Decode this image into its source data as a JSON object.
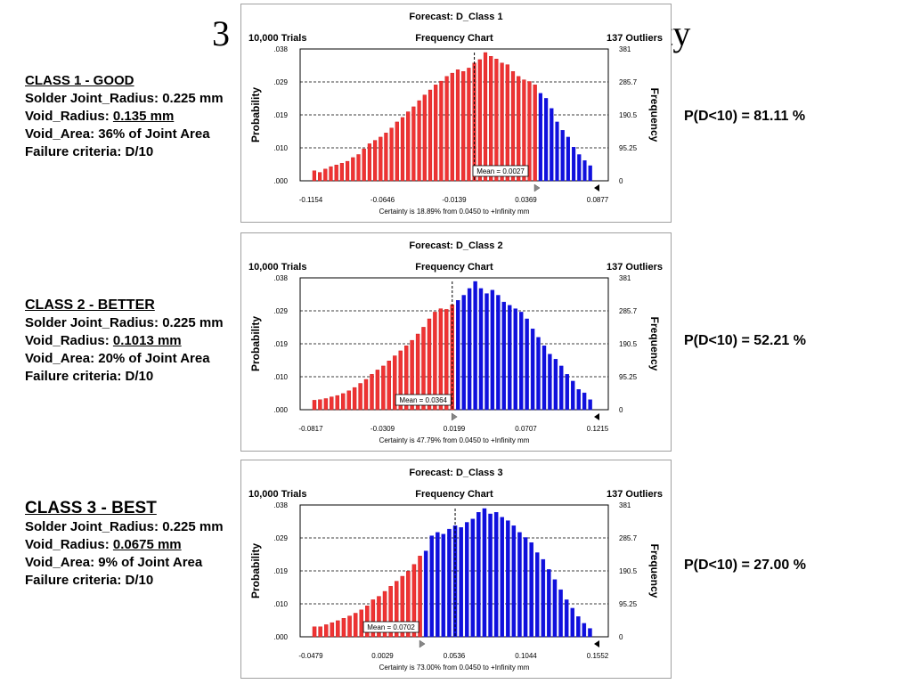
{
  "slide": {
    "title_visible": "3",
    "title_visible_end": "lity"
  },
  "classes": [
    {
      "heading": "CLASS 1 - GOOD",
      "radius_label": "Solder Joint_Radius: 0.225 mm",
      "void_radius_label": "Void_Radius: ",
      "void_radius_value": "0.135 mm",
      "void_area": "Void_Area: 36% of Joint Area",
      "failure": "Failure criteria: D/10",
      "probability": "P(D<10) = 81.11 %"
    },
    {
      "heading": "CLASS 2 - BETTER",
      "radius_label": "Solder Joint_Radius: 0.225 mm",
      "void_radius_label": "Void_Radius: ",
      "void_radius_value": "0.1013 mm",
      "void_area": "Void_Area: 20% of Joint Area",
      "failure": "Failure criteria: D/10",
      "probability": "P(D<10) = 52.21 %"
    },
    {
      "heading": "CLASS 3 - BEST",
      "radius_label": "Solder Joint_Radius:  0.225 mm",
      "void_radius_label": "Void_Radius: ",
      "void_radius_value": "0.0675 mm",
      "void_area": "Void_Area: 9% of Joint Area",
      "failure": "Failure criteria: D/10",
      "probability": "P(D<10) = 27.00 %"
    }
  ],
  "charts": [
    {
      "title": "Forecast: D_Class 1",
      "trials": "10,000 Trials",
      "subtitle": "Frequency Chart",
      "outliers": "137 Outliers",
      "ylabel": "Probability",
      "y2label": "Frequency",
      "left_ticks": [
        ".038",
        ".029",
        ".019",
        ".010",
        ".000"
      ],
      "right_ticks": [
        "381",
        "285.7",
        "190.5",
        "95.25",
        "0"
      ],
      "x_ticks": [
        "-0.1154",
        "-0.0646",
        "-0.0139",
        "0.0369",
        "0.0877"
      ],
      "mean_label": "Mean = 0.0027",
      "certainty": "Certainty is 18.89% from 0.0450 to +Infinity mm"
    },
    {
      "title": "Forecast: D_Class 2",
      "trials": "10,000 Trials",
      "subtitle": "Frequency Chart",
      "outliers": "137 Outliers",
      "ylabel": "Probability",
      "y2label": "Frequency",
      "left_ticks": [
        ".038",
        ".029",
        ".019",
        ".010",
        ".000"
      ],
      "right_ticks": [
        "381",
        "285.7",
        "190.5",
        "95.25",
        "0"
      ],
      "x_ticks": [
        "-0.0817",
        "-0.0309",
        "0.0199",
        "0.0707",
        "0.1215"
      ],
      "mean_label": "Mean = 0.0364",
      "certainty": "Certainty is 47.79% from 0.0450 to +Infinity mm"
    },
    {
      "title": "Forecast: D_Class 3",
      "trials": "10,000 Trials",
      "subtitle": "Frequency Chart",
      "outliers": "137 Outliers",
      "ylabel": "Probability",
      "y2label": "Frequency",
      "left_ticks": [
        ".038",
        ".029",
        ".019",
        ".010",
        ".000"
      ],
      "right_ticks": [
        "381",
        "285.7",
        "190.5",
        "95.25",
        "0"
      ],
      "x_ticks": [
        "-0.0479",
        "0.0029",
        "0.0536",
        "0.1044",
        "0.1552"
      ],
      "mean_label": "Mean = 0.0702",
      "certainty": "Certainty is 73.00% from 0.0450 to +Infinity mm"
    }
  ],
  "chart_data": [
    {
      "type": "bar",
      "title": "Forecast: D_Class 1",
      "ylabel": "Probability",
      "y2label": "Frequency",
      "ylim": [
        0,
        0.038
      ],
      "y2lim": [
        0,
        381
      ],
      "xlim": [
        -0.1154,
        0.0877
      ],
      "colors": {
        "below": "#ee3333",
        "above": "#1010dd"
      },
      "threshold_bar_index": 41,
      "mean_bar_index": 29,
      "frequencies": [
        30,
        25,
        35,
        42,
        47,
        52,
        58,
        69,
        78,
        95,
        110,
        120,
        130,
        142,
        157,
        175,
        188,
        205,
        220,
        238,
        255,
        270,
        285,
        296,
        310,
        320,
        330,
        325,
        335,
        350,
        360,
        381,
        370,
        362,
        350,
        345,
        325,
        310,
        300,
        295,
        285,
        260,
        245,
        215,
        175,
        150,
        130,
        100,
        78,
        60,
        45
      ]
    },
    {
      "type": "bar",
      "title": "Forecast: D_Class 2",
      "ylabel": "Probability",
      "y2label": "Frequency",
      "ylim": [
        0,
        0.038
      ],
      "y2lim": [
        0,
        381
      ],
      "xlim": [
        -0.0817,
        0.1215
      ],
      "colors": {
        "below": "#ee3333",
        "above": "#1010dd"
      },
      "threshold_bar_index": 25,
      "mean_bar_index": 24,
      "frequencies": [
        28,
        30,
        33,
        38,
        42,
        48,
        56,
        66,
        78,
        90,
        105,
        118,
        130,
        145,
        160,
        175,
        190,
        206,
        225,
        245,
        270,
        290,
        300,
        298,
        312,
        325,
        340,
        360,
        381,
        360,
        345,
        355,
        340,
        320,
        310,
        300,
        290,
        270,
        240,
        215,
        190,
        165,
        150,
        130,
        105,
        85,
        60,
        50,
        30
      ]
    },
    {
      "type": "bar",
      "title": "Forecast: D_Class 3",
      "ylabel": "Probability",
      "y2label": "Frequency",
      "ylim": [
        0,
        0.038
      ],
      "y2lim": [
        0,
        381
      ],
      "xlim": [
        -0.0479,
        0.1552
      ],
      "colors": {
        "below": "#ee3333",
        "above": "#1010dd"
      },
      "threshold_bar_index": 19,
      "mean_bar_index": 24,
      "frequencies": [
        30,
        30,
        36,
        42,
        48,
        55,
        62,
        70,
        80,
        92,
        110,
        120,
        135,
        150,
        165,
        180,
        195,
        215,
        240,
        255,
        300,
        310,
        305,
        320,
        330,
        325,
        340,
        350,
        370,
        381,
        365,
        370,
        355,
        345,
        330,
        310,
        295,
        280,
        250,
        230,
        200,
        170,
        140,
        110,
        85,
        60,
        40,
        25
      ]
    }
  ]
}
